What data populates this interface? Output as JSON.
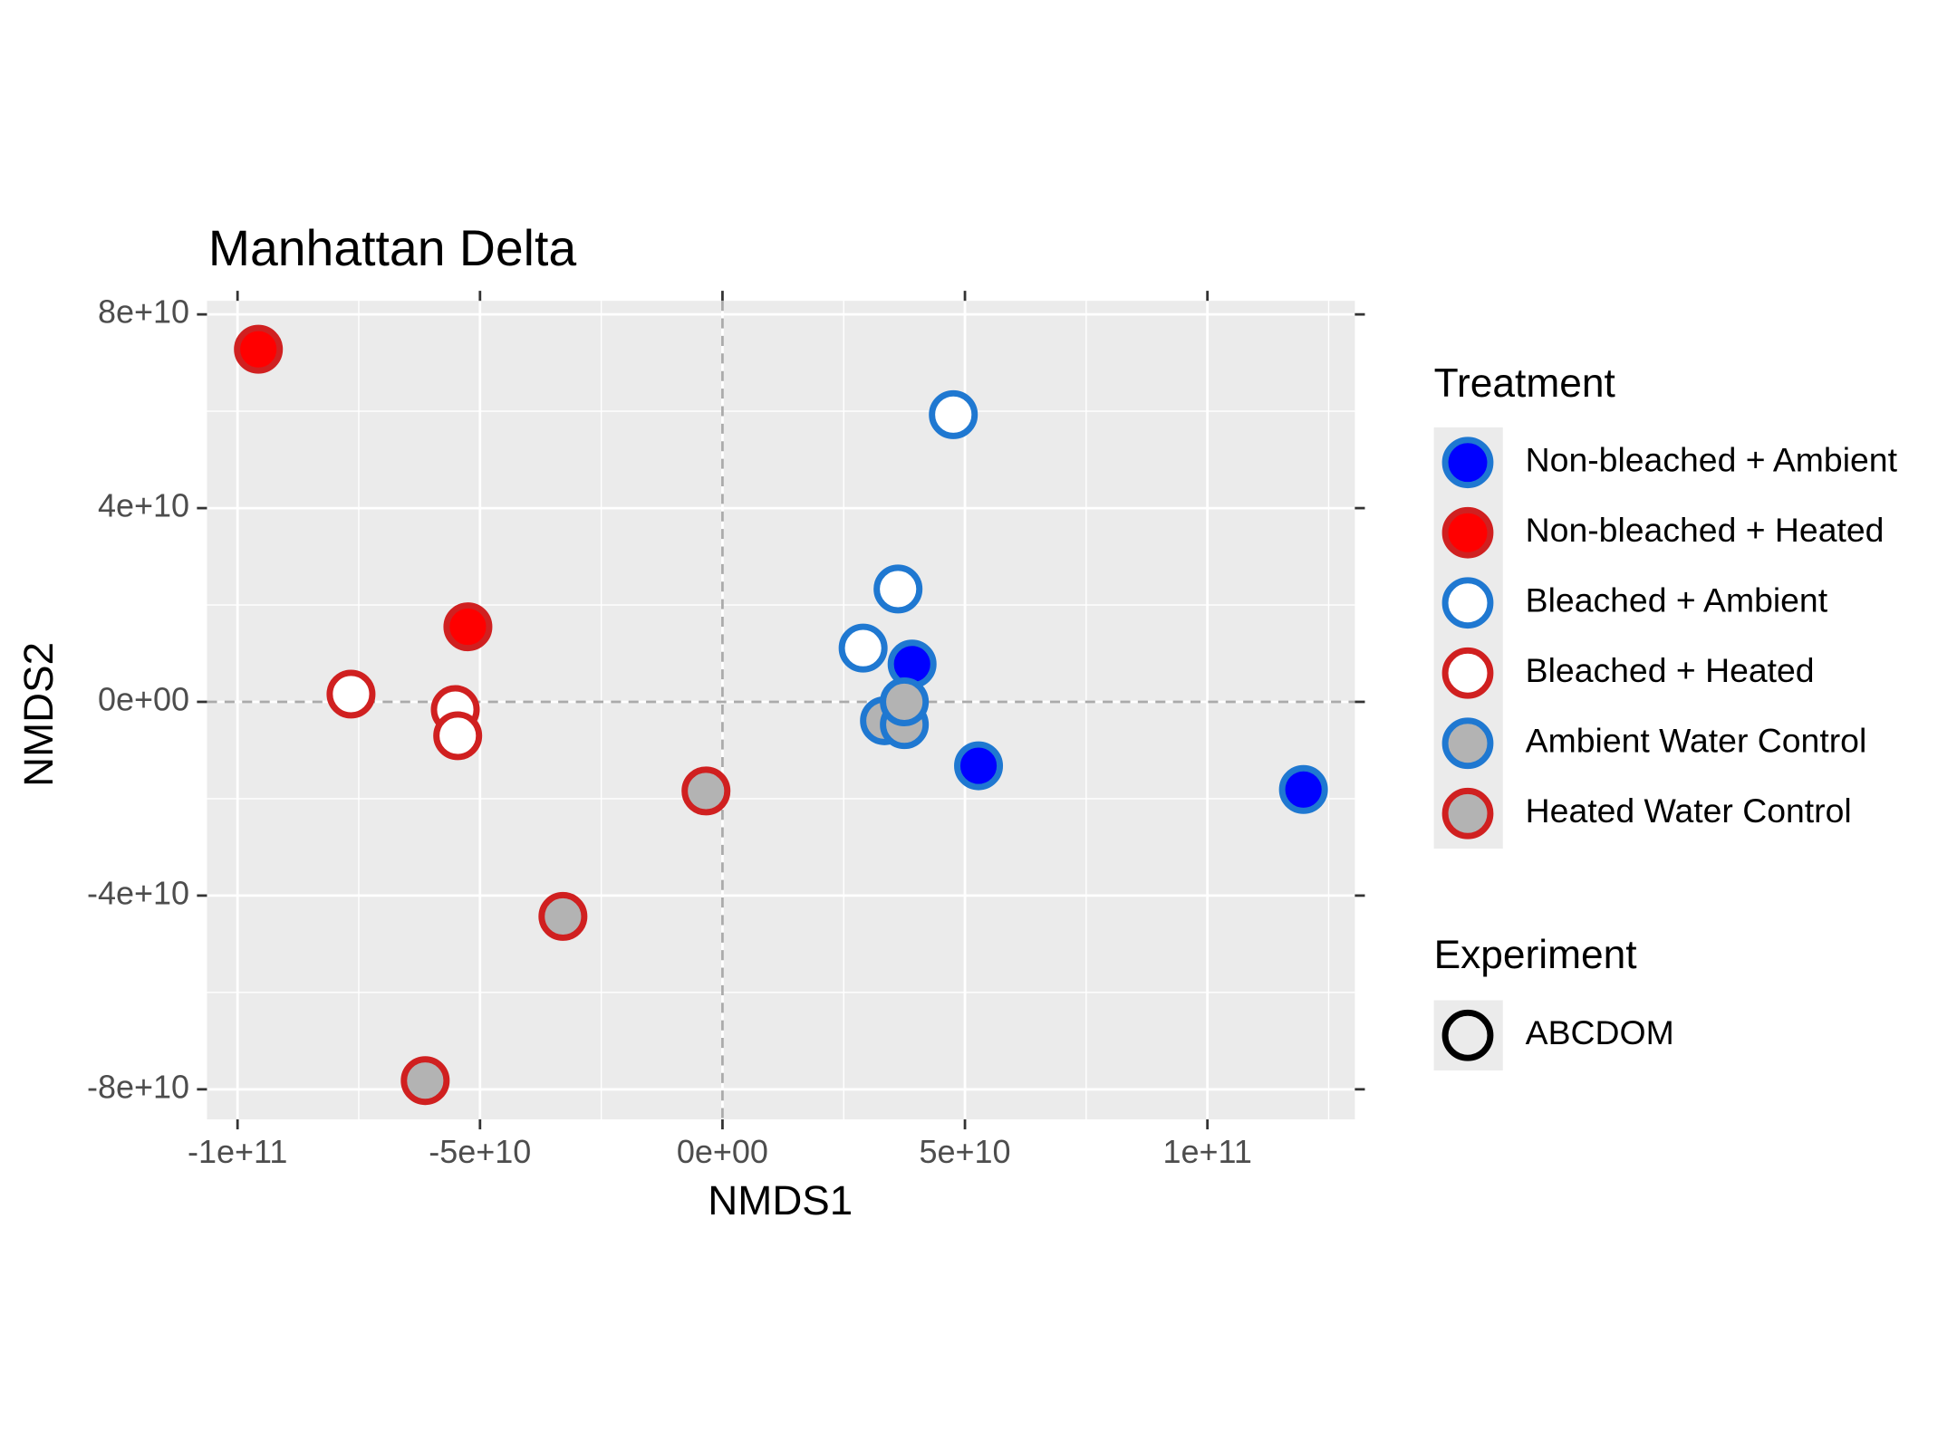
{
  "chart_data": {
    "type": "scatter",
    "title": "Manhattan Delta",
    "x_label": "NMDS1",
    "y_label": "NMDS2",
    "xlim": [
      -106300000000,
      130400000000
    ],
    "ylim": [
      -86200000000,
      82800000000
    ],
    "xticks": [
      {
        "value": -100000000000,
        "label": "-1e+11"
      },
      {
        "value": -50000000000,
        "label": "-5e+10"
      },
      {
        "value": 0,
        "label": "0e+00"
      },
      {
        "value": 50000000000,
        "label": "5e+10"
      },
      {
        "value": 100000000000,
        "label": "1e+11"
      }
    ],
    "yticks": [
      {
        "value": -80000000000,
        "label": "-8e+10"
      },
      {
        "value": -40000000000,
        "label": "-4e+10"
      },
      {
        "value": 0,
        "label": "0e+00"
      },
      {
        "value": 40000000000,
        "label": "4e+10"
      },
      {
        "value": 80000000000,
        "label": "8e+10"
      }
    ],
    "x_minor_ticks": [
      -75000000000,
      -25000000000,
      25000000000,
      75000000000,
      125000000000
    ],
    "y_minor_ticks": [
      -60000000000,
      -20000000000,
      20000000000,
      60000000000
    ],
    "grid": true,
    "hline": 0,
    "vline": 0,
    "legend_title": "Treatment",
    "series": [
      {
        "name": "Non-bleached + Ambient",
        "fill": "#0000ff",
        "stroke": "#1f78d1",
        "x": [
          39100000000,
          52800000000,
          119800000000
        ],
        "values": [
          7800000000,
          -13200000000,
          -18100000000
        ]
      },
      {
        "name": "Non-bleached + Heated",
        "fill": "#ff0000",
        "stroke": "#d02020",
        "x": [
          -95700000000,
          -52500000000
        ],
        "values": [
          72800000000,
          15500000000
        ]
      },
      {
        "name": "Bleached + Ambient",
        "fill": "#ffffff",
        "stroke": "#1f78d1",
        "x": [
          47600000000,
          36200000000,
          29000000000
        ],
        "values": [
          59300000000,
          23300000000,
          11100000000
        ]
      },
      {
        "name": "Bleached + Heated",
        "fill": "#ffffff",
        "stroke": "#d02020",
        "x": [
          -76600000000,
          -55100000000,
          -54600000000
        ],
        "values": [
          1600000000,
          -1600000000,
          -7000000000
        ]
      },
      {
        "name": "Ambient Water Control",
        "fill": "#b3b3b3",
        "stroke": "#1f78d1",
        "x": [
          33400000000,
          37500000000,
          37500000000
        ],
        "values": [
          -3900000000,
          -4700000000,
          0
        ]
      },
      {
        "name": "Heated Water Control",
        "fill": "#b3b3b3",
        "stroke": "#d02020",
        "x": [
          -3400000000,
          -32900000000,
          -61300000000
        ],
        "values": [
          -18400000000,
          -44300000000,
          -78200000000
        ]
      }
    ],
    "experiment_legend": {
      "title": "Experiment",
      "labels": [
        "ABCDOM"
      ],
      "fill": "#ebebeb",
      "stroke": "#000000"
    }
  }
}
